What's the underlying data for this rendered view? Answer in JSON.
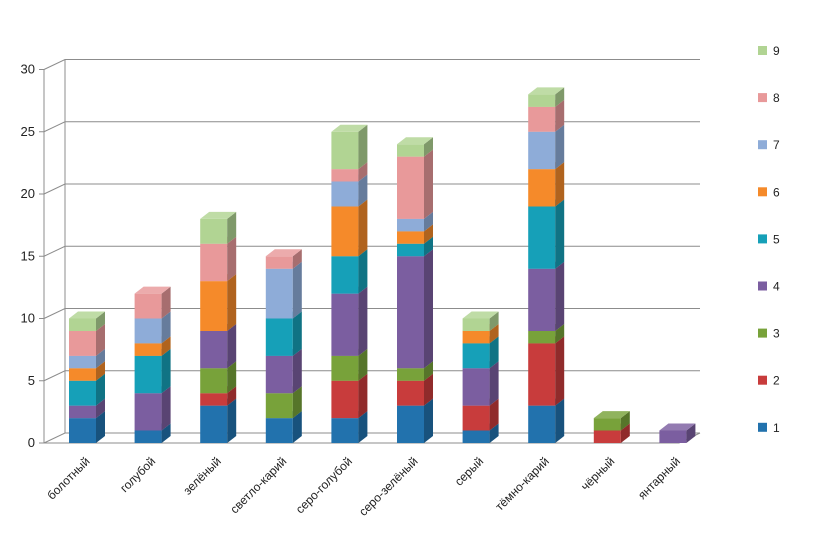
{
  "chart_data": {
    "type": "bar",
    "stacked": true,
    "style": "3d",
    "categories": [
      "болотный",
      "голубой",
      "зелёный",
      "светло-карий",
      "серо-голубой",
      "серо-зелёный",
      "серый",
      "тёмно-карий",
      "чёрный",
      "янтарный"
    ],
    "series": [
      {
        "name": "1",
        "color": "#2272ad",
        "values": [
          2,
          1,
          3,
          2,
          2,
          3,
          1,
          3,
          0,
          0
        ]
      },
      {
        "name": "2",
        "color": "#c83c3c",
        "values": [
          0,
          0,
          1,
          0,
          3,
          2,
          2,
          5,
          1,
          0
        ]
      },
      {
        "name": "3",
        "color": "#78a23a",
        "values": [
          0,
          0,
          2,
          2,
          2,
          1,
          0,
          1,
          1,
          0
        ]
      },
      {
        "name": "4",
        "color": "#7b5ea0",
        "values": [
          1,
          3,
          3,
          3,
          5,
          9,
          3,
          5,
          0,
          1
        ]
      },
      {
        "name": "5",
        "color": "#16a0b8",
        "values": [
          2,
          3,
          0,
          3,
          3,
          1,
          2,
          5,
          0,
          0
        ]
      },
      {
        "name": "6",
        "color": "#f58a2a",
        "values": [
          1,
          1,
          4,
          0,
          4,
          1,
          1,
          3,
          0,
          0
        ]
      },
      {
        "name": "7",
        "color": "#8eacd8",
        "values": [
          1,
          2,
          0,
          4,
          2,
          1,
          0,
          3,
          0,
          0
        ]
      },
      {
        "name": "8",
        "color": "#e8999a",
        "values": [
          2,
          2,
          3,
          1,
          1,
          5,
          0,
          2,
          0,
          0
        ]
      },
      {
        "name": "9",
        "color": "#b1d493",
        "values": [
          1,
          0,
          2,
          0,
          3,
          1,
          1,
          1,
          0,
          0
        ]
      }
    ],
    "yticks": [
      0,
      5,
      10,
      15,
      20,
      25,
      30
    ],
    "ylim": [
      0,
      30
    ],
    "grid": true,
    "legend": "right"
  }
}
